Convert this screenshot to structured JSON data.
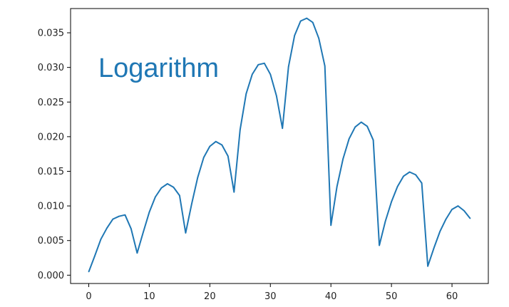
{
  "chart_data": {
    "type": "line",
    "title": "",
    "xlabel": "",
    "ylabel": "",
    "annotation": "Logarithm",
    "xlim": [
      -3,
      66
    ],
    "ylim": [
      -0.0012,
      0.0385
    ],
    "xticks": [
      0,
      10,
      20,
      30,
      40,
      50,
      60
    ],
    "xtick_labels": [
      "0",
      "10",
      "20",
      "30",
      "40",
      "50",
      "60"
    ],
    "yticks": [
      0.0,
      0.005,
      0.01,
      0.015,
      0.02,
      0.025,
      0.03,
      0.035
    ],
    "ytick_labels": [
      "0.000",
      "0.005",
      "0.010",
      "0.015",
      "0.020",
      "0.025",
      "0.030",
      "0.035"
    ],
    "grid": false,
    "series": [
      {
        "color": "#1f77b4",
        "x": [
          0,
          1,
          2,
          3,
          4,
          5,
          6,
          7,
          8,
          9,
          10,
          11,
          12,
          13,
          14,
          15,
          16,
          17,
          18,
          19,
          20,
          21,
          22,
          23,
          24,
          25,
          26,
          27,
          28,
          29,
          30,
          31,
          32,
          33,
          34,
          35,
          36,
          37,
          38,
          39,
          40,
          41,
          42,
          43,
          44,
          45,
          46,
          47,
          48,
          49,
          50,
          51,
          52,
          53,
          54,
          55,
          56,
          57,
          58,
          59,
          60,
          61,
          62,
          63
        ],
        "y": [
          0.0005,
          0.0028,
          0.0052,
          0.0068,
          0.0081,
          0.0085,
          0.0087,
          0.0067,
          0.0032,
          0.0062,
          0.0091,
          0.0113,
          0.0126,
          0.0132,
          0.0127,
          0.0115,
          0.0061,
          0.0103,
          0.0141,
          0.017,
          0.0186,
          0.0193,
          0.0188,
          0.0172,
          0.012,
          0.021,
          0.0262,
          0.029,
          0.0304,
          0.0306,
          0.029,
          0.0259,
          0.0212,
          0.0301,
          0.0346,
          0.0367,
          0.0371,
          0.0365,
          0.0342,
          0.0302,
          0.0072,
          0.0128,
          0.0168,
          0.0197,
          0.0214,
          0.0221,
          0.0215,
          0.0195,
          0.0043,
          0.0078,
          0.0106,
          0.0128,
          0.0143,
          0.0149,
          0.0145,
          0.0133,
          0.0013,
          0.0039,
          0.0063,
          0.0081,
          0.0095,
          0.01,
          0.0093,
          0.0082
        ]
      }
    ]
  }
}
